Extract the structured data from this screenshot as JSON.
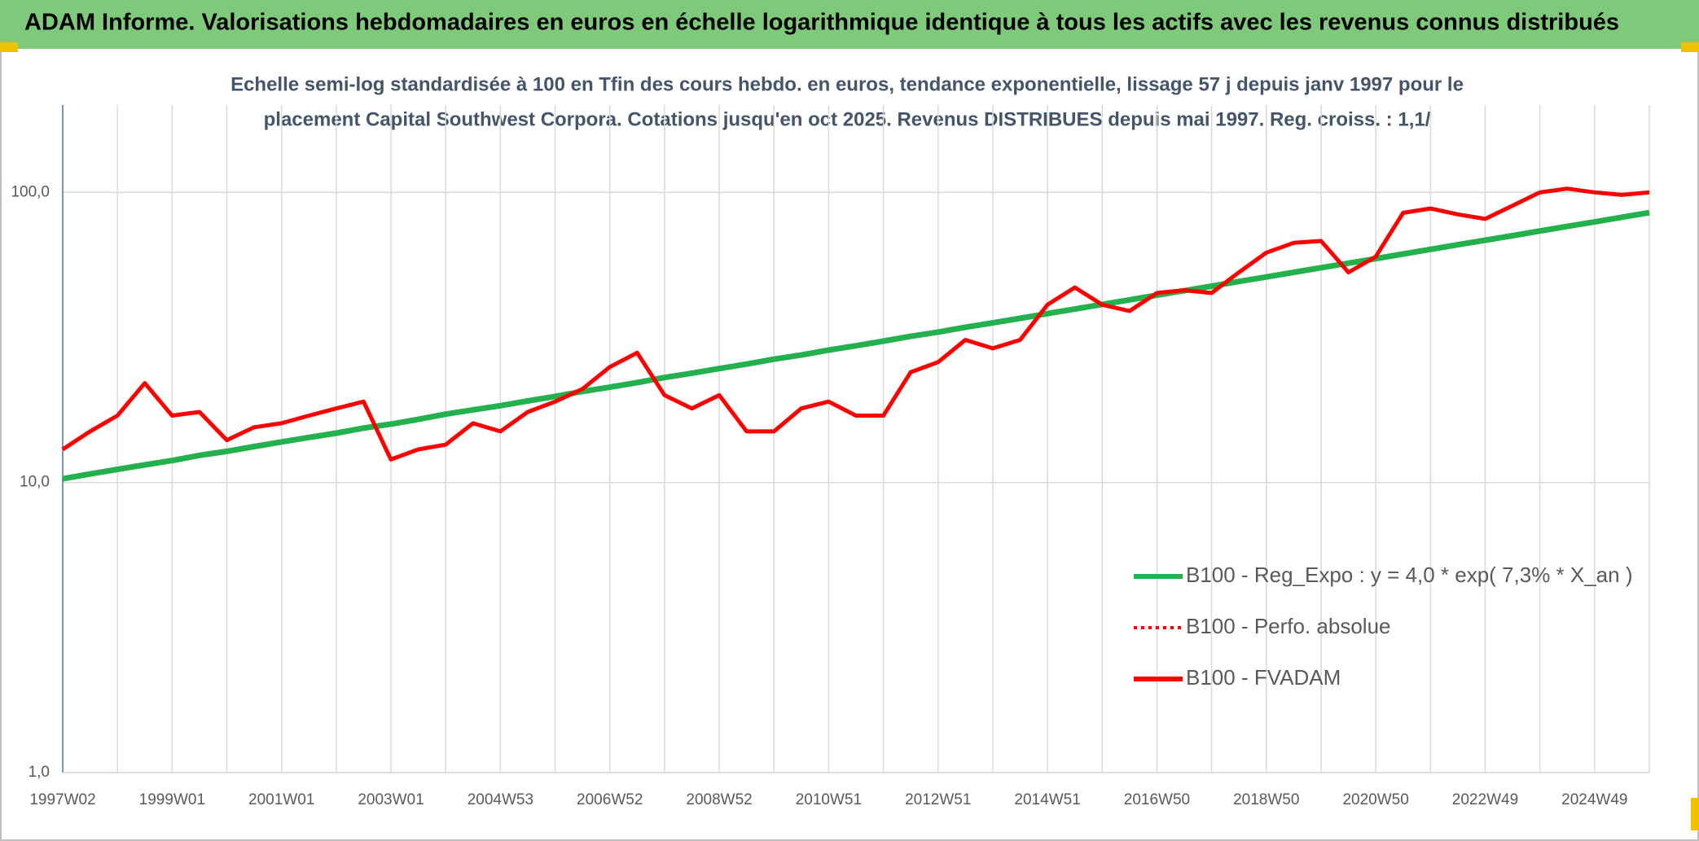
{
  "chart_data": {
    "type": "line",
    "header": "ADAM Informe. Valorisations hebdomadaires en euros en échelle logarithmique identique à tous les actifs avec les revenus connus distribués",
    "subtitle_lines": [
      "Echelle semi-log standardisée à 100 en Tfin des cours hebdo. en euros, tendance exponentielle, lissage 57 j depuis janv 1997 pour le",
      "placement Capital Southwest Corpora. Cotations jusqu'en oct 2025. Revenus DISTRIBUES depuis mai 1997. Reg. croiss. : 1,1/"
    ],
    "categories": [
      "1997W02",
      null,
      null,
      null,
      "1999W01",
      null,
      null,
      null,
      "2001W01",
      null,
      null,
      null,
      "2003W01",
      null,
      null,
      null,
      "2004W53",
      null,
      null,
      null,
      "2006W52",
      null,
      null,
      null,
      "2008W52",
      null,
      null,
      null,
      "2010W51",
      null,
      null,
      null,
      "2012W51",
      null,
      null,
      null,
      "2014W51",
      null,
      null,
      null,
      "2016W50",
      null,
      null,
      null,
      "2018W50",
      null,
      null,
      null,
      "2020W50",
      null,
      null,
      null,
      "2022W49",
      null,
      null,
      null,
      "2024W49",
      null,
      null
    ],
    "series": [
      {
        "name": "B100 - Reg_Expo : y = 4,0 * exp( 7,3% *  X_an )",
        "color": "#22b14c",
        "dash": "solid",
        "values": [
          10.3,
          10.7,
          11.1,
          11.5,
          11.9,
          12.4,
          12.8,
          13.3,
          13.8,
          14.3,
          14.8,
          15.4,
          15.9,
          16.5,
          17.2,
          17.8,
          18.4,
          19.1,
          19.8,
          20.6,
          21.3,
          22.1,
          23.0,
          23.8,
          24.7,
          25.6,
          26.6,
          27.5,
          28.6,
          29.6,
          30.7,
          31.9,
          33.0,
          34.3,
          35.5,
          36.8,
          38.2,
          39.6,
          41.1,
          42.6,
          44.2,
          45.8,
          47.5,
          49.3,
          51.1,
          53.0,
          55.0,
          57.0,
          59.1,
          61.3,
          63.6,
          66.0,
          68.4,
          70.9,
          73.6,
          76.3,
          79.1,
          82.1,
          85.1
        ]
      },
      {
        "name": "B100 - Perfo. absolue",
        "color": "#ff0000",
        "dash": "dotted"
      },
      {
        "name": "B100 - FVADAM",
        "color": "#ff0000",
        "dash": "solid",
        "values": [
          13,
          15,
          17,
          22,
          17,
          17.5,
          14,
          15.5,
          16,
          17,
          18,
          19,
          12,
          13,
          13.5,
          16,
          15,
          17.5,
          19,
          21,
          25,
          28,
          20,
          18,
          20,
          15,
          15,
          18,
          19,
          17,
          17,
          24,
          26,
          31,
          29,
          31,
          41,
          47,
          41,
          39,
          45,
          46,
          45,
          53,
          62,
          67,
          68,
          53,
          60,
          85,
          88,
          84,
          81,
          90,
          100,
          103,
          100,
          98,
          100
        ]
      }
    ],
    "ylim": [
      1,
      200
    ],
    "log_scale": true,
    "yticks": [
      {
        "value": 1,
        "label": "1,0"
      },
      {
        "value": 10,
        "label": "10,0"
      },
      {
        "value": 100,
        "label": "100,0"
      }
    ],
    "grid": true
  }
}
